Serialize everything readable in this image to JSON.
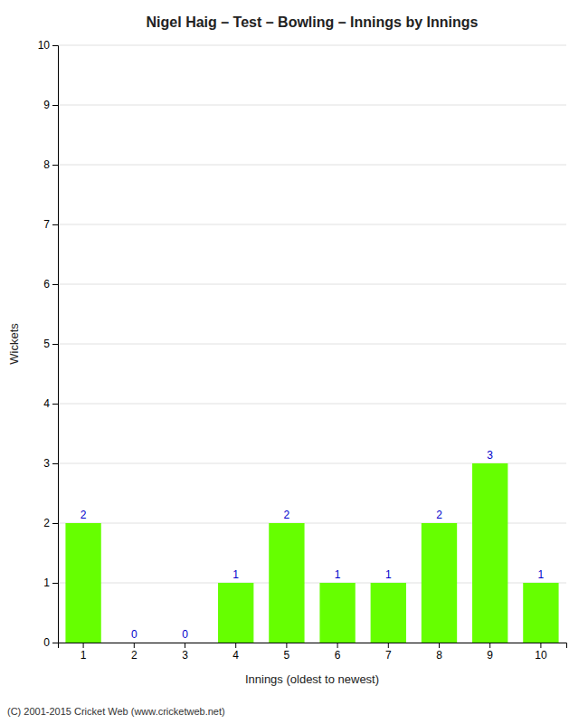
{
  "chart_data": {
    "type": "bar",
    "title": "Nigel Haig – Test – Bowling – Innings by Innings",
    "xlabel": "Innings (oldest to newest)",
    "ylabel": "Wickets",
    "categories": [
      1,
      2,
      3,
      4,
      5,
      6,
      7,
      8,
      9,
      10
    ],
    "values": [
      2,
      0,
      0,
      1,
      2,
      1,
      1,
      2,
      3,
      1
    ],
    "color": "#66ff00",
    "ylim": [
      0,
      10
    ],
    "yticks": [
      0,
      1,
      2,
      3,
      4,
      5,
      6,
      7,
      8,
      9,
      10
    ],
    "grid": true,
    "data_labels": true,
    "annotations": [
      "(C) 2001-2015 Cricket Web (www.cricketweb.net)"
    ]
  }
}
